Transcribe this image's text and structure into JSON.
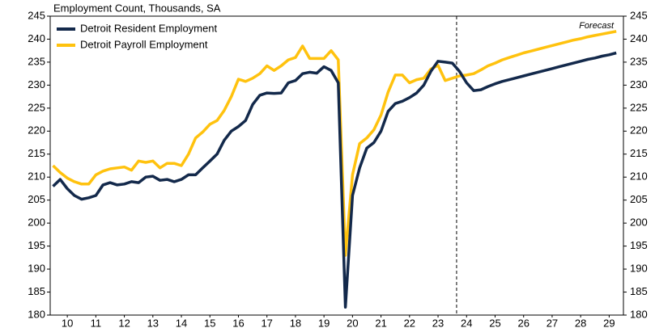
{
  "chart_data": {
    "type": "line",
    "title": "Employment Count, Thousands, SA",
    "x": [
      10,
      10.25,
      10.5,
      10.75,
      11,
      11.25,
      11.5,
      11.75,
      12,
      12.25,
      12.5,
      12.75,
      13,
      13.25,
      13.5,
      13.75,
      14,
      14.25,
      14.5,
      14.75,
      15,
      15.25,
      15.5,
      15.75,
      16,
      16.25,
      16.5,
      16.75,
      17,
      17.25,
      17.5,
      17.75,
      18,
      18.25,
      18.5,
      18.75,
      19,
      19.25,
      19.5,
      19.75,
      20,
      20.25,
      20.5,
      20.75,
      21,
      21.25,
      21.5,
      21.75,
      22,
      22.25,
      22.5,
      22.75,
      23,
      23.25,
      23.5,
      23.75,
      24,
      24.25,
      24.5,
      24.75,
      25,
      25.25,
      25.5,
      25.75,
      26,
      26.25,
      26.5,
      26.75,
      27,
      27.25,
      27.5,
      27.75,
      28,
      28.25,
      28.5,
      28.75,
      29,
      29.25,
      29.5,
      29.75
    ],
    "series": [
      {
        "name": "Detroit Resident Employment",
        "color": "#13294b",
        "values": [
          208,
          209.5,
          207.5,
          206,
          205.2,
          205.5,
          206,
          208.3,
          208.8,
          208.3,
          208.5,
          209,
          208.8,
          210,
          210.2,
          209.3,
          209.5,
          209,
          209.5,
          210.5,
          210.5,
          212,
          213.5,
          215,
          218,
          220,
          221,
          222.3,
          225.8,
          227.8,
          228.3,
          228.2,
          228.3,
          230.5,
          231,
          232.5,
          232.8,
          232.6,
          234,
          233.2,
          230.5,
          181.7,
          206,
          212,
          216.3,
          217.5,
          220,
          224.3,
          226,
          226.5,
          227.3,
          228.3,
          230,
          233,
          235.2,
          235,
          234.8,
          233,
          230.5,
          228.8,
          229,
          229.7,
          230.3,
          230.8,
          231.2,
          231.6,
          232,
          232.4,
          232.8,
          233.2,
          233.6,
          234,
          234.4,
          234.8,
          235.2,
          235.6,
          235.9,
          236.3,
          236.6,
          237
        ]
      },
      {
        "name": "Detroit Payroll Employment",
        "color": "#ffc20e",
        "values": [
          212.5,
          211,
          209.8,
          209,
          208.5,
          208.5,
          210.5,
          211.3,
          211.8,
          212,
          212.2,
          211.5,
          213.5,
          213.2,
          213.5,
          212,
          213,
          213,
          212.5,
          215,
          218.5,
          219.8,
          221.5,
          222.3,
          224.5,
          227.5,
          231.3,
          230.8,
          231.5,
          232.5,
          234.2,
          233.2,
          234.2,
          235.5,
          236,
          238.5,
          235.8,
          235.8,
          235.8,
          237.5,
          235.5,
          193,
          210.5,
          217.3,
          218.5,
          220.3,
          223.5,
          228.5,
          232.2,
          232.2,
          230.5,
          231.2,
          231.5,
          233.5,
          234.3,
          231,
          231.5,
          232,
          232.2,
          232.5,
          233.3,
          234.2,
          234.8,
          235.5,
          236,
          236.5,
          237,
          237.4,
          237.8,
          238.2,
          238.6,
          239,
          239.4,
          239.8,
          240.1,
          240.5,
          240.8,
          241.1,
          241.4,
          241.7
        ]
      }
    ],
    "forecast": {
      "label": "Forecast",
      "x": 24.15
    },
    "xlim": [
      9.9,
      30
    ],
    "xticks": [
      {
        "value": 10.5,
        "label": "10"
      },
      {
        "value": 11.5,
        "label": "11"
      },
      {
        "value": 12.5,
        "label": "12"
      },
      {
        "value": 13.5,
        "label": "13"
      },
      {
        "value": 14.5,
        "label": "14"
      },
      {
        "value": 15.5,
        "label": "15"
      },
      {
        "value": 16.5,
        "label": "16"
      },
      {
        "value": 17.5,
        "label": "17"
      },
      {
        "value": 18.5,
        "label": "18"
      },
      {
        "value": 19.5,
        "label": "19"
      },
      {
        "value": 20.5,
        "label": "20"
      },
      {
        "value": 21.5,
        "label": "21"
      },
      {
        "value": 22.5,
        "label": "22"
      },
      {
        "value": 23.5,
        "label": "23"
      },
      {
        "value": 24.5,
        "label": "24"
      },
      {
        "value": 25.5,
        "label": "25"
      },
      {
        "value": 26.5,
        "label": "26"
      },
      {
        "value": 27.5,
        "label": "27"
      },
      {
        "value": 28.5,
        "label": "28"
      },
      {
        "value": 29.5,
        "label": "29"
      }
    ],
    "ylim": [
      180,
      245
    ],
    "yticks": [
      180,
      185,
      190,
      195,
      200,
      205,
      210,
      215,
      220,
      225,
      230,
      235,
      240,
      245
    ],
    "y2lim": [
      180,
      245
    ],
    "y2ticks": [
      180,
      185,
      190,
      195,
      200,
      205,
      210,
      215,
      220,
      225,
      230,
      235,
      240,
      245
    ],
    "legend": "upper left"
  }
}
